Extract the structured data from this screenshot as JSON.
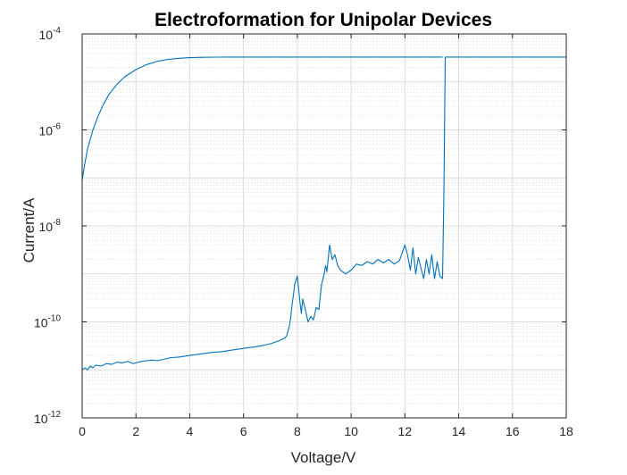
{
  "chart_data": {
    "type": "line",
    "title": "Electroformation for Unipolar Devices",
    "xlabel": "Voltage/V",
    "ylabel": "Current/A",
    "xlim": [
      0,
      18
    ],
    "ylim": [
      1e-12,
      0.0001
    ],
    "yscale": "log",
    "grid": true,
    "minor_grid": true,
    "x_ticks": [
      "0",
      "2",
      "4",
      "6",
      "8",
      "10",
      "12",
      "14",
      "16",
      "18"
    ],
    "y_ticks": [
      {
        "base": "10",
        "exp": "-12"
      },
      {
        "base": "10",
        "exp": "-10"
      },
      {
        "base": "10",
        "exp": "-8"
      },
      {
        "base": "10",
        "exp": "-6"
      },
      {
        "base": "10",
        "exp": "-4"
      }
    ],
    "line_color": "#0072BD",
    "series": [
      {
        "segments": [
          {
            "x": [
              0,
              0.1,
              0.2,
              0.4,
              0.6,
              0.8,
              1.0,
              1.3,
              1.6,
              2.0,
              2.4,
              2.8,
              3.2,
              3.6,
              4.0,
              4.5,
              5.0,
              6.0,
              8.0,
              10.0,
              12.0,
              13.4
            ],
            "y": [
              9e-08,
              2e-07,
              4e-07,
              1e-06,
              2e-06,
              3.5e-06,
              5.5e-06,
              9e-06,
              1.3e-05,
              1.8e-05,
              2.3e-05,
              2.7e-05,
              2.95e-05,
              3.1e-05,
              3.2e-05,
              3.25e-05,
              3.28e-05,
              3.3e-05,
              3.3e-05,
              3.3e-05,
              3.3e-05,
              3.3e-05
            ]
          },
          {
            "x": [
              0,
              0.1,
              0.2,
              0.3,
              0.4,
              0.5,
              0.7,
              0.9,
              1.1,
              1.3,
              1.5,
              1.7,
              1.9,
              2.0,
              2.2,
              2.4,
              2.6,
              2.8,
              3.0,
              3.3,
              3.6,
              4.0,
              4.4,
              4.8,
              5.2,
              5.6,
              6.0,
              6.4,
              6.8,
              7.0,
              7.3,
              7.5,
              7.6,
              7.7,
              7.75,
              7.8,
              7.85,
              7.9,
              8.0,
              8.1,
              8.15,
              8.2,
              8.3,
              8.4,
              8.5,
              8.6,
              8.7,
              8.8,
              8.9,
              9.0,
              9.05,
              9.1,
              9.2,
              9.3,
              9.4,
              9.5,
              9.6,
              9.8,
              10.0,
              10.2,
              10.4,
              10.6,
              10.8,
              11.0,
              11.2,
              11.4,
              11.6,
              11.8,
              12.0,
              12.1,
              12.2,
              12.3,
              12.4,
              12.5,
              12.6,
              12.7,
              12.8,
              12.9,
              13.0,
              13.1,
              13.2,
              13.3,
              13.4,
              13.45,
              13.5,
              13.55,
              13.6,
              14.0,
              15.0,
              16.0,
              17.0,
              18.0
            ],
            "y": [
              1e-11,
              1.1e-11,
              1e-11,
              1.2e-11,
              1.1e-11,
              1.25e-11,
              1.2e-11,
              1.35e-11,
              1.3e-11,
              1.45e-11,
              1.4e-11,
              1.5e-11,
              1.35e-11,
              1.4e-11,
              1.5e-11,
              1.55e-11,
              1.6e-11,
              1.55e-11,
              1.65e-11,
              1.8e-11,
              1.85e-11,
              2e-11,
              2.15e-11,
              2.3e-11,
              2.4e-11,
              2.6e-11,
              2.8e-11,
              3e-11,
              3.3e-11,
              3.5e-11,
              4e-11,
              4.5e-11,
              5e-11,
              8e-11,
              1.2e-10,
              2.2e-10,
              3.5e-10,
              6e-10,
              9e-10,
              2.5e-10,
              1.5e-10,
              3e-10,
              1.8e-10,
              1e-10,
              1.3e-10,
              1.1e-10,
              2e-10,
              1.8e-10,
              6e-10,
              1e-09,
              1.5e-09,
              1.1e-09,
              4e-09,
              2e-09,
              2.5e-09,
              1.5e-09,
              1.2e-09,
              1e-09,
              1.2e-09,
              1.6e-09,
              1.5e-09,
              1.8e-09,
              1.6e-09,
              2e-09,
              1.7e-09,
              2e-09,
              1.6e-09,
              1.9e-09,
              4e-09,
              2.5e-09,
              1.2e-09,
              3.5e-09,
              1e-09,
              2.2e-09,
              1.3e-09,
              8e-10,
              2e-09,
              1e-09,
              2.5e-09,
              8e-10,
              1.8e-09,
              9e-10,
              8e-10,
              5e-08,
              3.3e-05,
              3.3e-05,
              3.3e-05,
              3.3e-05,
              3.3e-05,
              3.3e-05,
              3.3e-05,
              3.3e-05
            ]
          }
        ]
      }
    ]
  }
}
